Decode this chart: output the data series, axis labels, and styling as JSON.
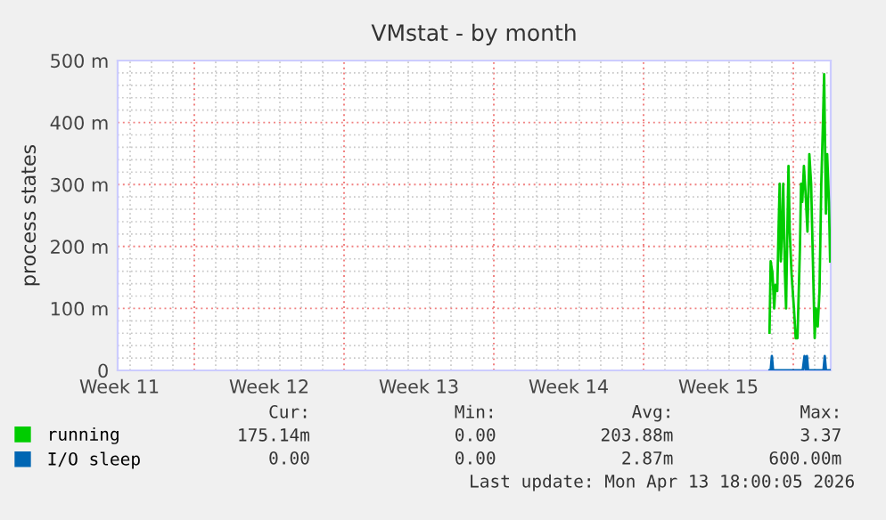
{
  "chart_data": {
    "type": "line",
    "title": "VMstat - by month",
    "ylabel": "process states",
    "xlim": [
      "2026-03-11T10:00",
      "2026-04-13T18:00"
    ],
    "xticks": [
      {
        "value": "2026-03-11T12:00",
        "label": "Week 11"
      },
      {
        "value": "2026-03-15T00:00",
        "label": null
      },
      {
        "value": "2026-03-18T12:00",
        "label": "Week 12"
      },
      {
        "value": "2026-03-22T00:00",
        "label": null
      },
      {
        "value": "2026-03-25T12:00",
        "label": "Week 13"
      },
      {
        "value": "2026-03-29T00:00",
        "label": null
      },
      {
        "value": "2026-04-01T12:00",
        "label": "Week 14"
      },
      {
        "value": "2026-04-05T00:00",
        "label": null
      },
      {
        "value": "2026-04-08T12:00",
        "label": "Week 15"
      },
      {
        "value": "2026-04-12T00:00",
        "label": null
      }
    ],
    "ylim": [
      0,
      500
    ],
    "yticks": [
      0,
      {
        "value": 100,
        "label": "100 m"
      },
      {
        "value": 200,
        "label": "200 m"
      },
      {
        "value": 300,
        "label": "300 m"
      },
      {
        "value": 400,
        "label": "400 m"
      },
      {
        "value": 500,
        "label": "500 m"
      }
    ],
    "grid": true,
    "legend": "bottom left",
    "marker": "none",
    "line_style": "solid",
    "series": [
      {
        "name": "running",
        "color": "#00cc00",
        "x": [
          "2026-04-10T21:18",
          "2026-04-10T22:36",
          "2026-04-11T00:36",
          "2026-04-11T02:36",
          "2026-04-11T04:00",
          "2026-04-11T06:00",
          "2026-04-11T07:24",
          "2026-04-11T08:42",
          "2026-04-11T10:00",
          "2026-04-11T11:24",
          "2026-04-11T12:42",
          "2026-04-11T14:36",
          "2026-04-11T15:54",
          "2026-04-11T17:18",
          "2026-04-11T18:36",
          "2026-04-11T20:00",
          "2026-04-11T22:00",
          "2026-04-12T00:42",
          "2026-04-12T02:42",
          "2026-04-12T04:42",
          "2026-04-12T07:24",
          "2026-04-12T08:42",
          "2026-04-12T10:06",
          "2026-04-12T11:54",
          "2026-04-12T13:54",
          "2026-04-12T15:54",
          "2026-04-12T18:00",
          "2026-04-12T20:00",
          "2026-04-12T22:00",
          "2026-04-13T00:00",
          "2026-04-13T01:24",
          "2026-04-13T03:24",
          "2026-04-13T05:24",
          "2026-04-13T07:24",
          "2026-04-13T09:24",
          "2026-04-13T10:36",
          "2026-04-13T12:36",
          "2026-04-13T14:00",
          "2026-04-13T16:00",
          "2026-04-13T17:18"
        ],
        "values": [
          61,
          176,
          157,
          100,
          138,
          128,
          224,
          301,
          176,
          224,
          301,
          157,
          100,
          224,
          330,
          224,
          157,
          100,
          52,
          52,
          195,
          301,
          272,
          330,
          282,
          224,
          349,
          301,
          176,
          52,
          100,
          71,
          128,
          301,
          406,
          478,
          253,
          349,
          272,
          176
        ]
      },
      {
        "name": "I/O sleep",
        "color": "#0066b3",
        "x": [
          "2026-04-10T21:18",
          "2026-04-10T22:36",
          "2026-04-10T23:58",
          "2026-04-11T01:18",
          "2026-04-12T10:36",
          "2026-04-12T12:36",
          "2026-04-12T13:54",
          "2026-04-12T15:18",
          "2026-04-12T16:36",
          "2026-04-13T09:54",
          "2026-04-13T11:18",
          "2026-04-13T12:36",
          "2026-04-13T17:18"
        ],
        "values": [
          0,
          0,
          23,
          0,
          0,
          23,
          0,
          23,
          0,
          0,
          23,
          0,
          0
        ]
      }
    ],
    "annotations": [
      "Cur:",
      "Min:",
      "Avg:",
      "Max:",
      "175.14m",
      "0.00",
      "203.88m",
      "3.37",
      "0.00",
      "0.00",
      "2.87m",
      "600.00m",
      "Last update: Mon Apr 13 18:00:05 2026"
    ]
  }
}
